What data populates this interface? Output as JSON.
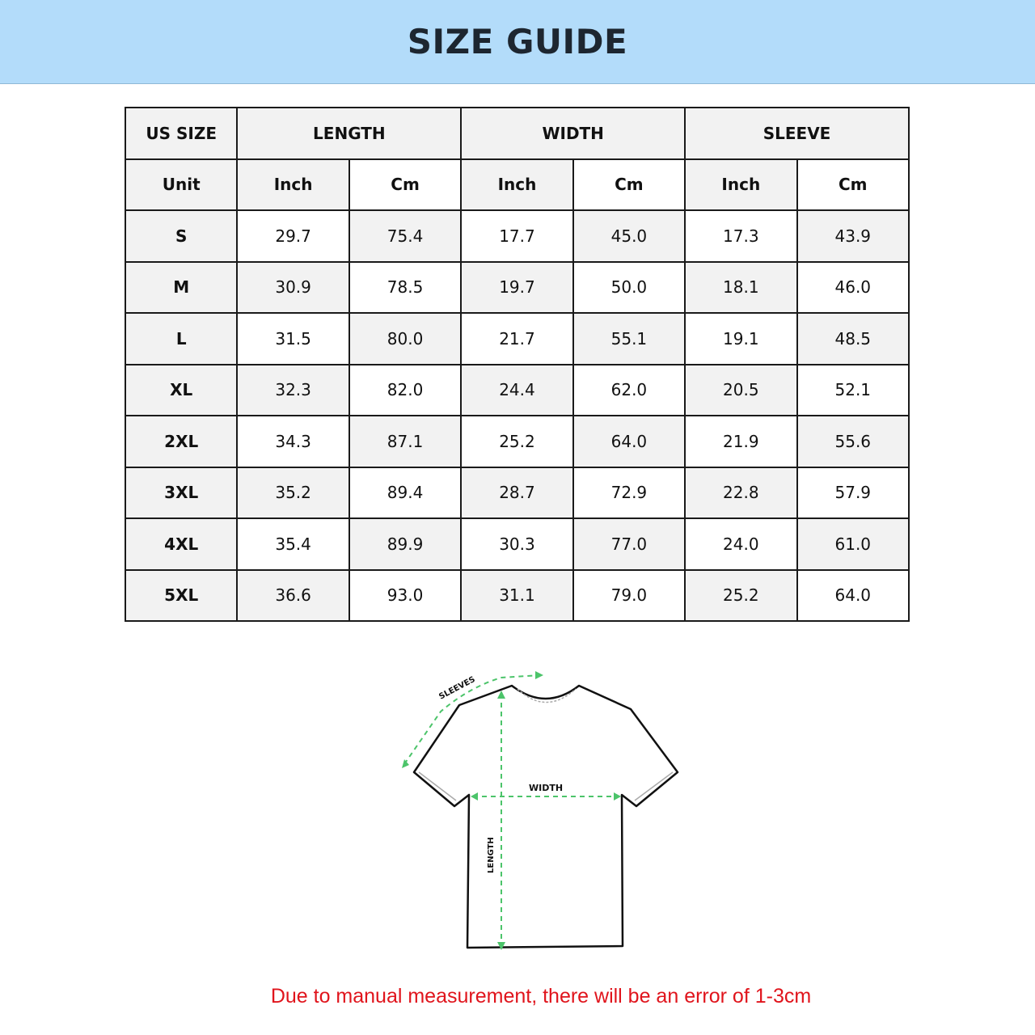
{
  "title": "SIZE GUIDE",
  "table": {
    "header_groups": [
      "US SIZE",
      "LENGTH",
      "WIDTH",
      "SLEEVE"
    ],
    "unit_row": [
      "Unit",
      "Inch",
      "Cm",
      "Inch",
      "Cm",
      "Inch",
      "Cm"
    ],
    "rows": [
      [
        "S",
        "29.7",
        "75.4",
        "17.7",
        "45.0",
        "17.3",
        "43.9"
      ],
      [
        "M",
        "30.9",
        "78.5",
        "19.7",
        "50.0",
        "18.1",
        "46.0"
      ],
      [
        "L",
        "31.5",
        "80.0",
        "21.7",
        "55.1",
        "19.1",
        "48.5"
      ],
      [
        "XL",
        "32.3",
        "82.0",
        "24.4",
        "62.0",
        "20.5",
        "52.1"
      ],
      [
        "2XL",
        "34.3",
        "87.1",
        "25.2",
        "64.0",
        "21.9",
        "55.6"
      ],
      [
        "3XL",
        "35.2",
        "89.4",
        "28.7",
        "72.9",
        "22.8",
        "57.9"
      ],
      [
        "4XL",
        "35.4",
        "89.9",
        "30.3",
        "77.0",
        "24.0",
        "61.0"
      ],
      [
        "5XL",
        "36.6",
        "93.0",
        "31.1",
        "79.0",
        "25.2",
        "64.0"
      ]
    ]
  },
  "diagram": {
    "sleeves_label": "SLEEVES",
    "width_label": "WIDTH",
    "length_label": "LENGTH",
    "arrow_color": "#4cc46a"
  },
  "note": "Due to manual measurement, there will be an error of 1-3cm",
  "colors": {
    "banner": "#b3dcfa",
    "note": "#e0141c"
  }
}
